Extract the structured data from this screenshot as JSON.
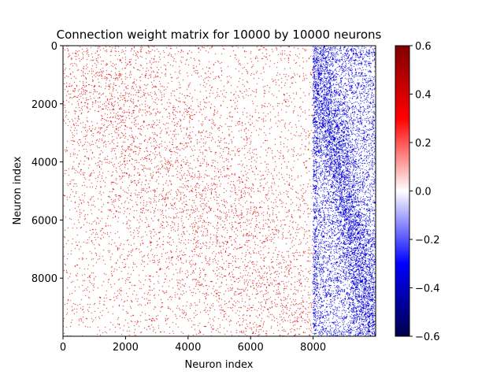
{
  "chart_data": {
    "type": "heatmap",
    "title": "Connection weight matrix for 10000 by 10000 neurons",
    "xlabel": "Neuron index",
    "ylabel": "Neuron index",
    "xlim": [
      0,
      10000
    ],
    "ylim": [
      10000,
      0
    ],
    "x_ticks": [
      0,
      2000,
      4000,
      6000,
      8000
    ],
    "x_tick_labels": [
      "0",
      "2000",
      "4000",
      "6000",
      "8000"
    ],
    "y_ticks": [
      0,
      2000,
      4000,
      6000,
      8000
    ],
    "y_tick_labels": [
      "0",
      "2000",
      "4000",
      "6000",
      "8000"
    ],
    "colormap": "seismic",
    "color_range": [
      -0.6,
      0.6
    ],
    "colorbar_ticks": [
      0.6,
      0.4,
      0.2,
      0.0,
      -0.2,
      -0.4,
      -0.6
    ],
    "colorbar_tick_labels": [
      "0.6",
      "0.4",
      "0.2",
      "0.0",
      "−0.2",
      "−0.4",
      "−0.6"
    ],
    "excitatory_block": {
      "x_range": [
        0,
        8000
      ],
      "weight_sign": "positive",
      "typical_weight": 0.5
    },
    "inhibitory_block": {
      "x_range": [
        8000,
        10000
      ],
      "weight_sign": "negative",
      "typical_weight": -0.5
    },
    "colors": {
      "positive": "#d00000",
      "negative": "#0000e0",
      "zero": "#ffffff"
    }
  }
}
